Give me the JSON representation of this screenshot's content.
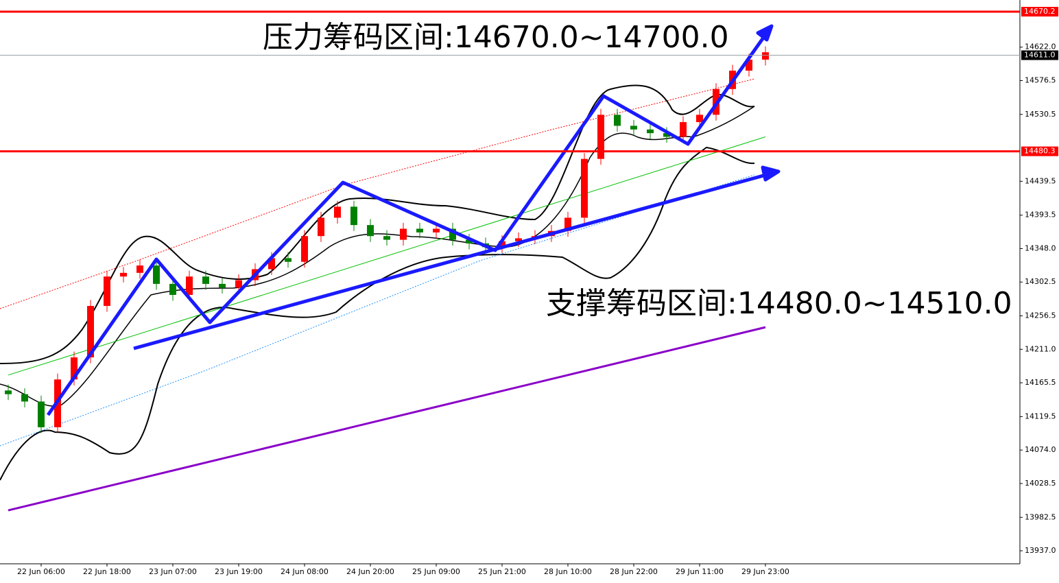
{
  "chart_data": {
    "type": "candlestick",
    "categories": [
      null,
      null,
      "22 Jun 06:00",
      null,
      null,
      null,
      "22 Jun 18:00",
      null,
      null,
      null,
      "23 Jun 07:00",
      null,
      null,
      null,
      "23 Jun 19:00",
      null,
      null,
      null,
      "24 Jun 08:00",
      null,
      null,
      null,
      "24 Jun 20:00",
      null,
      null,
      null,
      "25 Jun 09:00",
      null,
      null,
      null,
      "25 Jun 21:00",
      null,
      null,
      null,
      "28 Jun 10:00",
      null,
      null,
      null,
      "28 Jun 22:00",
      null,
      null,
      null,
      "29 Jun 11:00",
      null,
      null,
      null,
      "29 Jun 23:00"
    ],
    "open": [
      14155,
      14150,
      14140,
      14105,
      14170,
      14200,
      14270,
      14310,
      14315,
      14325,
      14300,
      14285,
      14310,
      14300,
      14295,
      14305,
      14320,
      14335,
      14330,
      14365,
      14390,
      14405,
      14380,
      14365,
      14360,
      14375,
      14370,
      14375,
      14360,
      14355,
      14350,
      14358,
      14362,
      14365,
      14372,
      14390,
      14470,
      14530,
      14515,
      14510,
      14505,
      14500,
      14520,
      14530,
      14565,
      14590,
      14605
    ],
    "high": [
      14163,
      14158,
      14148,
      14178,
      14208,
      14278,
      14318,
      14323,
      14333,
      14333,
      14308,
      14318,
      14318,
      14308,
      14313,
      14328,
      14343,
      14343,
      14373,
      14398,
      14413,
      14413,
      14388,
      14373,
      14383,
      14383,
      14383,
      14383,
      14368,
      14363,
      14366,
      14370,
      14373,
      14380,
      14398,
      14478,
      14538,
      14538,
      14523,
      14518,
      14513,
      14528,
      14538,
      14573,
      14598,
      14613,
      14623
    ],
    "low": [
      14142,
      14132,
      14097,
      14097,
      14162,
      14192,
      14262,
      14302,
      14307,
      14292,
      14277,
      14277,
      14292,
      14287,
      14287,
      14297,
      14312,
      14322,
      14322,
      14357,
      14382,
      14372,
      14357,
      14352,
      14352,
      14362,
      14362,
      14352,
      14347,
      14342,
      14342,
      14350,
      14354,
      14357,
      14364,
      14382,
      14462,
      14507,
      14502,
      14497,
      14492,
      14492,
      14512,
      14522,
      14557,
      14582,
      14597
    ],
    "close": [
      14150,
      14140,
      14105,
      14170,
      14200,
      14270,
      14310,
      14315,
      14325,
      14300,
      14285,
      14310,
      14300,
      14295,
      14305,
      14320,
      14335,
      14330,
      14365,
      14390,
      14405,
      14380,
      14365,
      14360,
      14375,
      14370,
      14375,
      14360,
      14355,
      14350,
      14358,
      14362,
      14365,
      14372,
      14390,
      14470,
      14530,
      14515,
      14510,
      14505,
      14500,
      14520,
      14530,
      14565,
      14590,
      14605,
      14615
    ],
    "up_color": "#ff0000",
    "down_color": "#008000",
    "lines": [
      {
        "color": "#8a00c8",
        "x": [
          0,
          46
        ],
        "values": [
          13992,
          14241
        ]
      },
      {
        "color": "#00c000",
        "x": [
          0,
          46
        ],
        "values": [
          14176,
          14500
        ]
      }
    ],
    "hlines": [
      {
        "value": 14670.2,
        "color": "#ff0000"
      },
      {
        "value": 14611.0,
        "color": "#9aa0a6"
      },
      {
        "value": 14480.3,
        "color": "#ff0000"
      }
    ],
    "hline_labels": [
      "14670.2",
      "14611.0",
      "14480.3"
    ],
    "ylim": [
      13919.3,
      14686.1
    ],
    "yticks": [
      {
        "value": 14622,
        "label": "14622.0"
      },
      {
        "value": 14576.5,
        "label": "14576.5"
      },
      {
        "value": 14530.5,
        "label": "14530.5"
      },
      {
        "value": 14439.5,
        "label": "14439.5"
      },
      {
        "value": 14393.5,
        "label": "14393.5"
      },
      {
        "value": 14348,
        "label": "14348.0"
      },
      {
        "value": 14302.5,
        "label": "14302.5"
      },
      {
        "value": 14256.5,
        "label": "14256.5"
      },
      {
        "value": 14211,
        "label": "14211.0"
      },
      {
        "value": 14165.5,
        "label": "14165.5"
      },
      {
        "value": 14119.5,
        "label": "14119.5"
      },
      {
        "value": 14074,
        "label": "14074.0"
      },
      {
        "value": 14028.5,
        "label": "14028.5"
      },
      {
        "value": 13982.5,
        "label": "13982.5"
      },
      {
        "value": 13937,
        "label": "13937.0"
      }
    ],
    "annotations": [
      "压力筹码区间:14670.0~14700.0",
      "支撑筹码区间:14480.0~14510.0"
    ]
  }
}
